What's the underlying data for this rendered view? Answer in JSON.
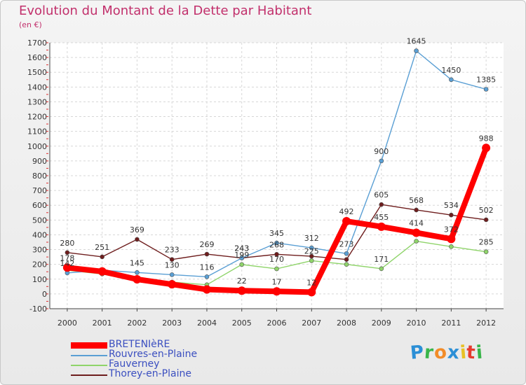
{
  "title": "Evolution du Montant de la Dette par Habitant",
  "subtitle": "(en €)",
  "logo": {
    "letters": [
      "P",
      "r",
      "o",
      "x",
      "i",
      "t",
      "i"
    ],
    "colors": [
      "#2b8fd6",
      "#39b54a",
      "#f28c28",
      "#2b8fd6",
      "#e8c125",
      "#e63b2e",
      "#39b54a"
    ]
  },
  "chart_data": {
    "type": "line",
    "title": "Evolution du Montant de la Dette par Habitant",
    "subtitle": "(en €)",
    "x": [
      "2000",
      "2001",
      "2002",
      "2003",
      "2004",
      "2005",
      "2006",
      "2007",
      "2008",
      "2009",
      "2010",
      "2011",
      "2012"
    ],
    "ylim": [
      -100,
      1700
    ],
    "yticks": [
      "-100",
      "0",
      "100",
      "200",
      "300",
      "400",
      "500",
      "600",
      "700",
      "800",
      "900",
      "1000",
      "1100",
      "1200",
      "1300",
      "1400",
      "1500",
      "1600",
      "1700"
    ],
    "grid": true,
    "legend_position": "bottom-left",
    "series": [
      {
        "name": "Thorey-en-Plaine",
        "color": "#6e1d1d",
        "values": [
          280,
          251,
          369,
          233,
          269,
          243,
          268,
          255,
          233,
          605,
          568,
          534,
          502
        ],
        "labels": [
          "280",
          "251",
          "369",
          "233",
          "269",
          "243",
          "268",
          "",
          "",
          "605",
          "568",
          "534",
          "502"
        ]
      },
      {
        "name": "Fauverney",
        "color": "#8fd46a",
        "values": [
          160,
          135,
          90,
          80,
          62,
          199,
          170,
          225,
          200,
          171,
          357,
          320,
          285
        ],
        "labels": [
          "",
          "",
          "",
          "",
          "",
          "199",
          "170",
          "225",
          "",
          "171",
          "",
          "",
          "285"
        ]
      },
      {
        "name": "Rouvres-en-Plaine",
        "color": "#5a9fd4",
        "values": [
          142,
          160,
          145,
          130,
          116,
          243,
          345,
          312,
          273,
          900,
          1645,
          1450,
          1385
        ],
        "labels": [
          "142",
          "",
          "145",
          "130",
          "116",
          "243",
          "345",
          "312",
          "273",
          "900",
          "1645",
          "1450",
          "1385"
        ]
      },
      {
        "name": "BRETENIèRE",
        "color": "#ff0000",
        "values": [
          178,
          152,
          99,
          65,
          30,
          22,
          17,
          12,
          492,
          455,
          414,
          372,
          988
        ],
        "labels": [
          "178",
          "",
          "",
          "",
          "",
          "22",
          "17",
          "12",
          "492",
          "455",
          "414",
          "372",
          "988"
        ]
      }
    ],
    "legend": [
      "BRETENIèRE",
      "Rouvres-en-Plaine",
      "Fauverney",
      "Thorey-en-Plaine"
    ]
  }
}
